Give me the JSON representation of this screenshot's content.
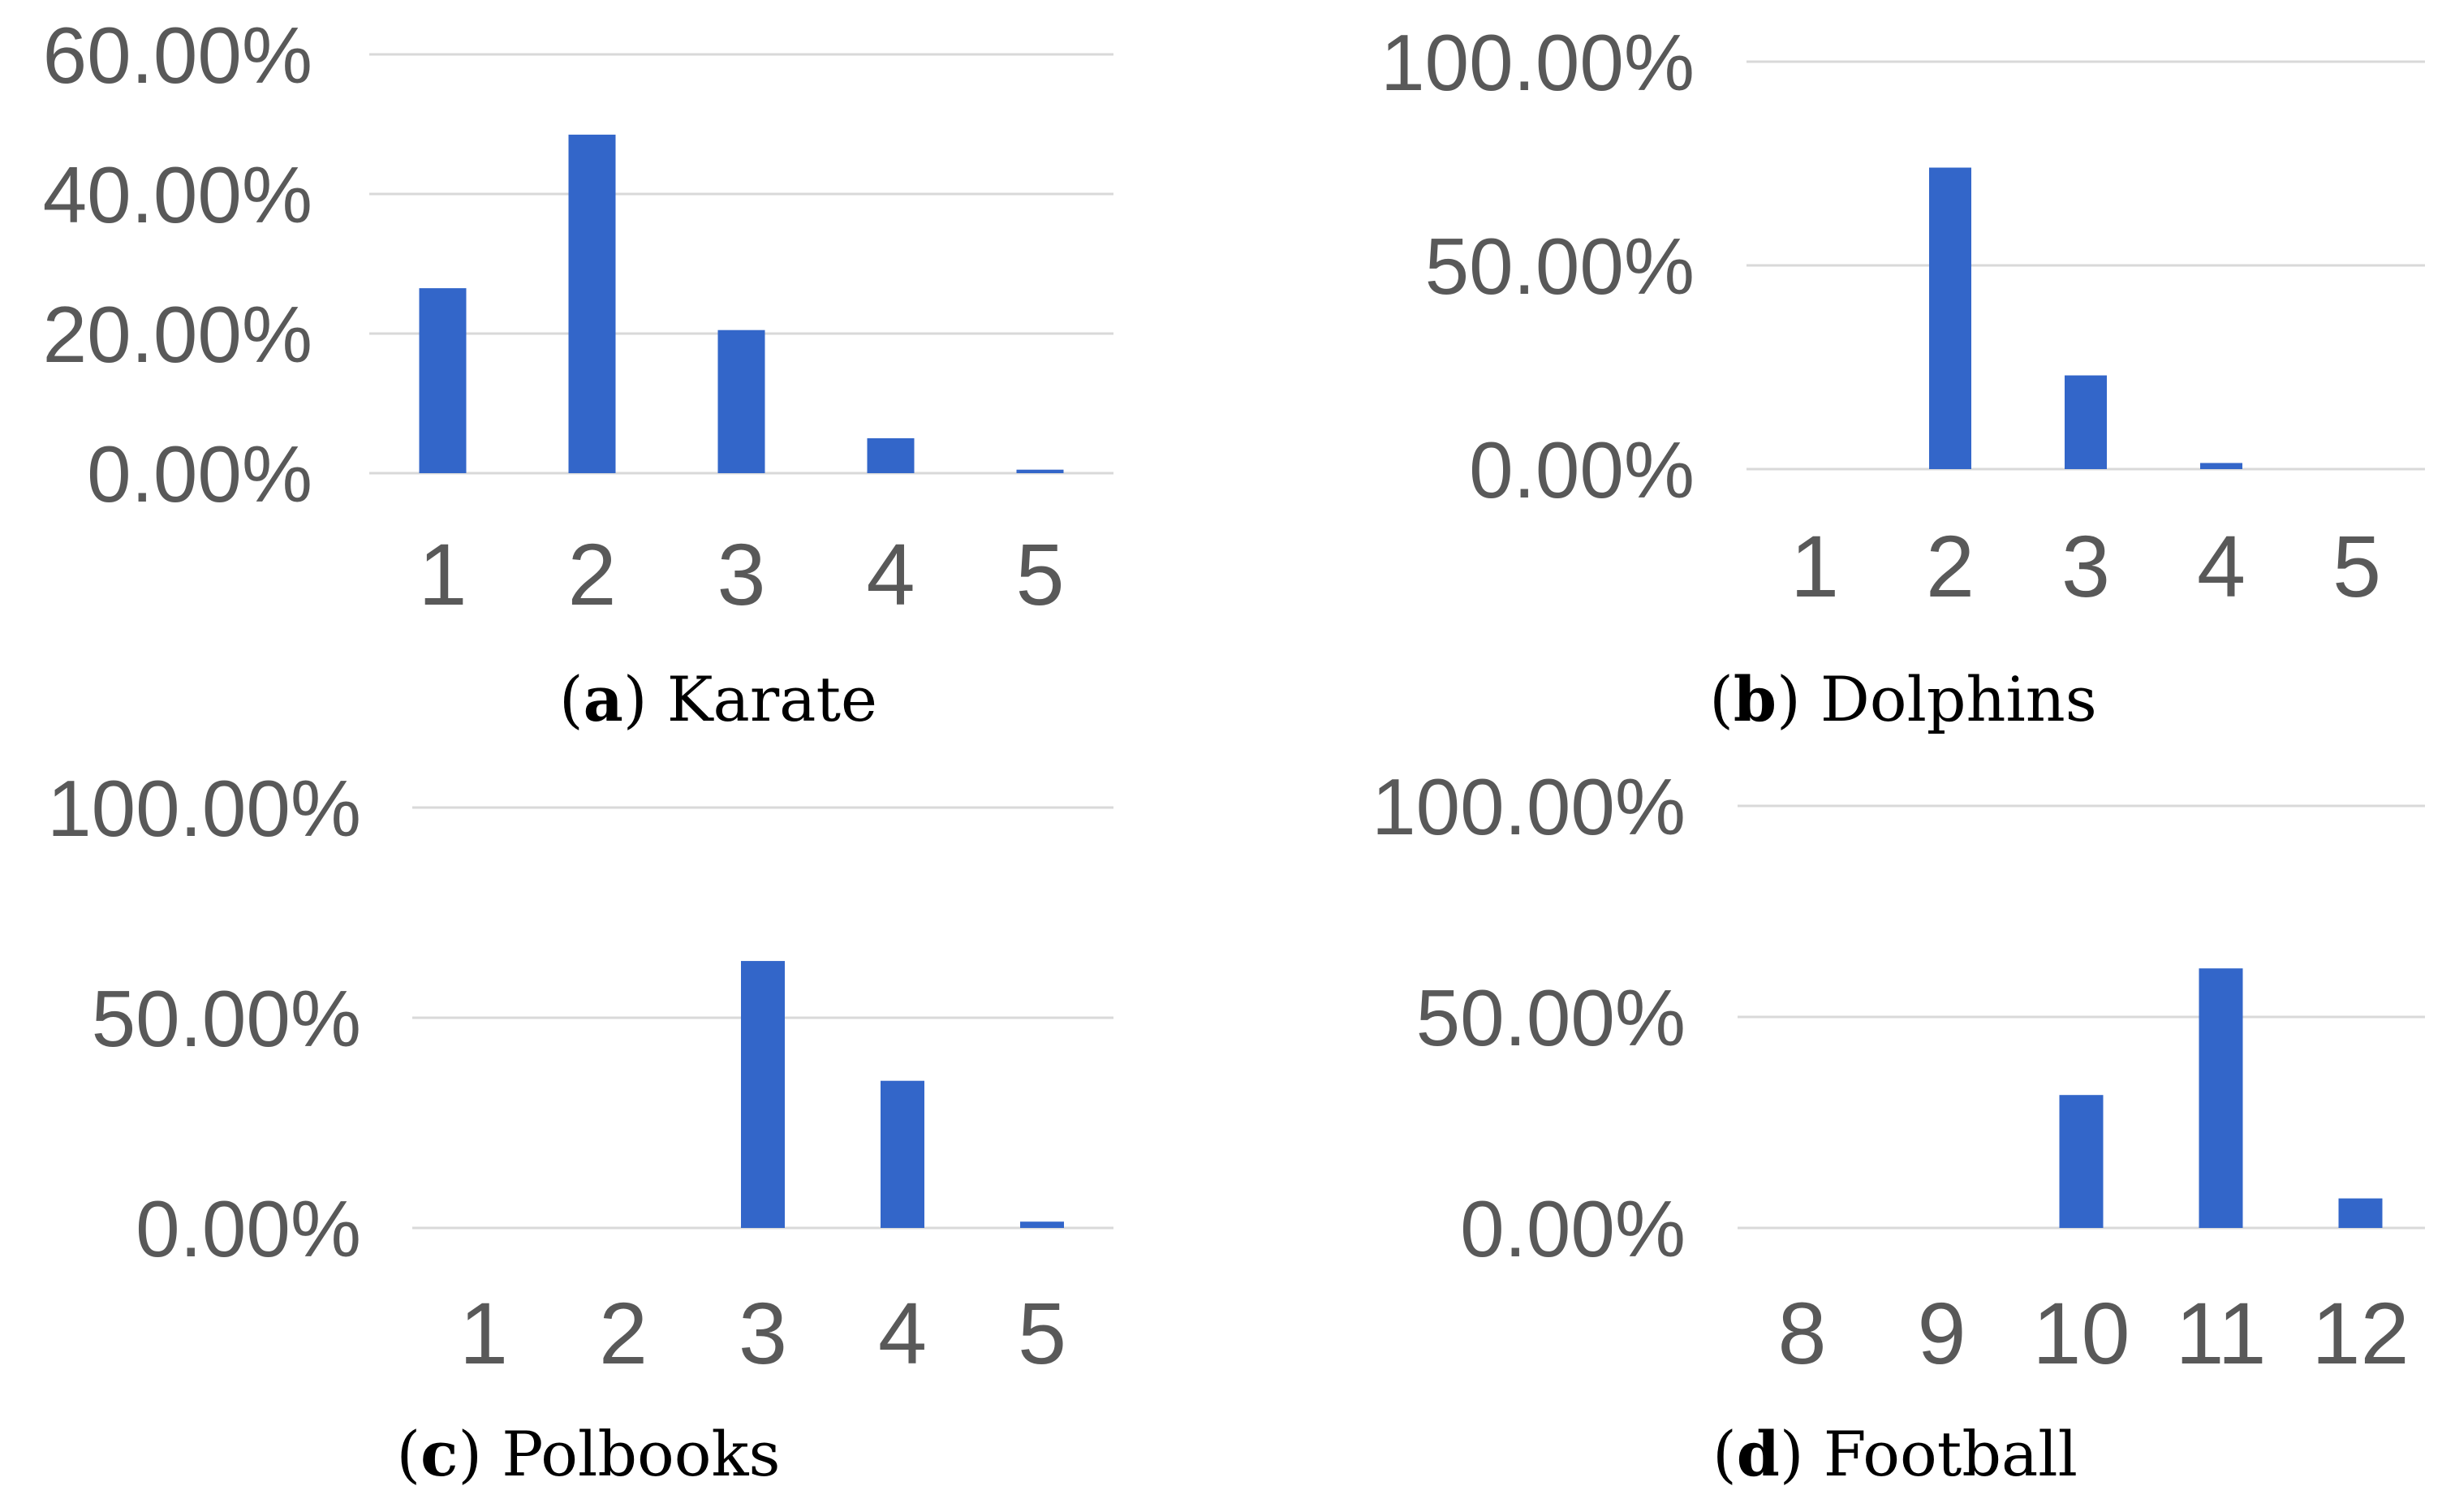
{
  "colors": {
    "bar": "#3366c9",
    "grid": "#d9d9d9",
    "tick_text": "#595959"
  },
  "chart_data": [
    {
      "type": "bar",
      "caption_letter": "a",
      "caption_name": "Karate",
      "categories": [
        "1",
        "2",
        "3",
        "4",
        "5"
      ],
      "values": [
        26.5,
        48.5,
        20.5,
        5.0,
        0.5
      ],
      "yticks": [
        0,
        20,
        40,
        60
      ],
      "ytick_labels": [
        "0.00%",
        "20.00%",
        "40.00%",
        "60.00%"
      ],
      "ylim": [
        0,
        60
      ],
      "grid": true
    },
    {
      "type": "bar",
      "caption_letter": "b",
      "caption_name": "Dolphins",
      "categories": [
        "1",
        "2",
        "3",
        "4",
        "5"
      ],
      "values": [
        0,
        74,
        23,
        1.5,
        0
      ],
      "yticks": [
        0,
        50,
        100
      ],
      "ytick_labels": [
        "0.00%",
        "50.00%",
        "100.00%"
      ],
      "ylim": [
        0,
        100
      ],
      "grid": true
    },
    {
      "type": "bar",
      "caption_letter": "c",
      "caption_name": "Polbooks",
      "categories": [
        "1",
        "2",
        "3",
        "4",
        "5"
      ],
      "values": [
        0,
        0,
        63.5,
        35,
        1.5
      ],
      "yticks": [
        0,
        50,
        100
      ],
      "ytick_labels": [
        "0.00%",
        "50.00%",
        "100.00%"
      ],
      "ylim": [
        0,
        100
      ],
      "grid": true
    },
    {
      "type": "bar",
      "caption_letter": "d",
      "caption_name": "Football",
      "categories": [
        "8",
        "9",
        "10",
        "11",
        "12"
      ],
      "values": [
        0,
        0,
        31.5,
        61.5,
        7
      ],
      "yticks": [
        0,
        50,
        100
      ],
      "ytick_labels": [
        "0.00%",
        "50.00%",
        "100.00%"
      ],
      "ylim": [
        0,
        100
      ],
      "grid": true
    }
  ]
}
